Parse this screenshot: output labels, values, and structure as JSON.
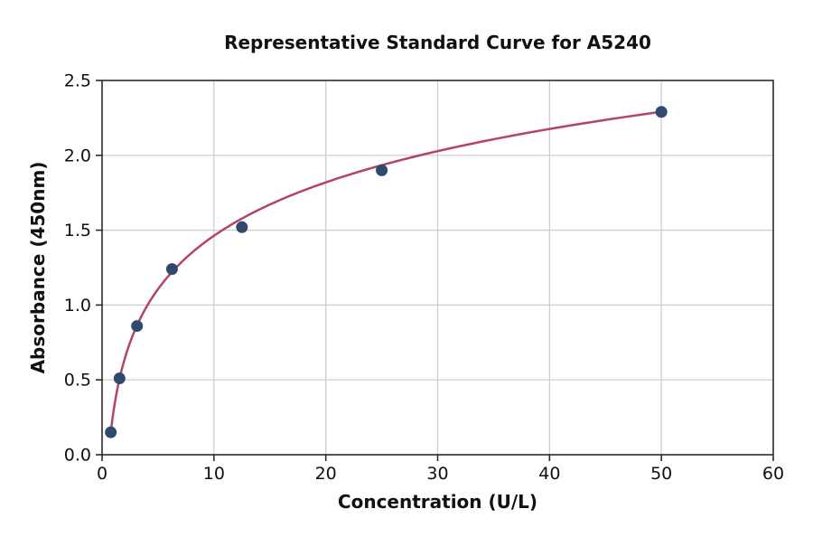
{
  "chart_data": {
    "type": "scatter",
    "title": "Representative Standard Curve for A5240",
    "xlabel": "Concentration (U/L)",
    "ylabel": "Absorbance (450nm)",
    "xlim": [
      0,
      60
    ],
    "ylim": [
      0,
      2.5
    ],
    "x_ticks": [
      0,
      10,
      20,
      30,
      40,
      50,
      60
    ],
    "y_ticks": [
      0.0,
      0.5,
      1.0,
      1.5,
      2.0,
      2.5
    ],
    "y_tick_decimals": 1,
    "grid": true,
    "legend": "none",
    "points": [
      {
        "x": 0.781,
        "y": 0.15
      },
      {
        "x": 1.563,
        "y": 0.51
      },
      {
        "x": 3.125,
        "y": 0.86
      },
      {
        "x": 6.25,
        "y": 1.24
      },
      {
        "x": 12.5,
        "y": 1.52
      },
      {
        "x": 25,
        "y": 1.9
      },
      {
        "x": 50,
        "y": 2.29
      }
    ],
    "fit_curve": {
      "type": "logarithmic",
      "equation": "y = a*ln(x) + b",
      "a": 0.5145,
      "b": 0.278,
      "x_start": 0.781,
      "x_end": 50
    },
    "colors": {
      "point": "#2e4a6e",
      "curve": "#b4436a",
      "grid": "#cbcbcb",
      "axis": "#2b2b2b",
      "text": "#111111",
      "background": "#ffffff"
    },
    "marker_radius": 6.5,
    "curve_width": 2.5
  }
}
